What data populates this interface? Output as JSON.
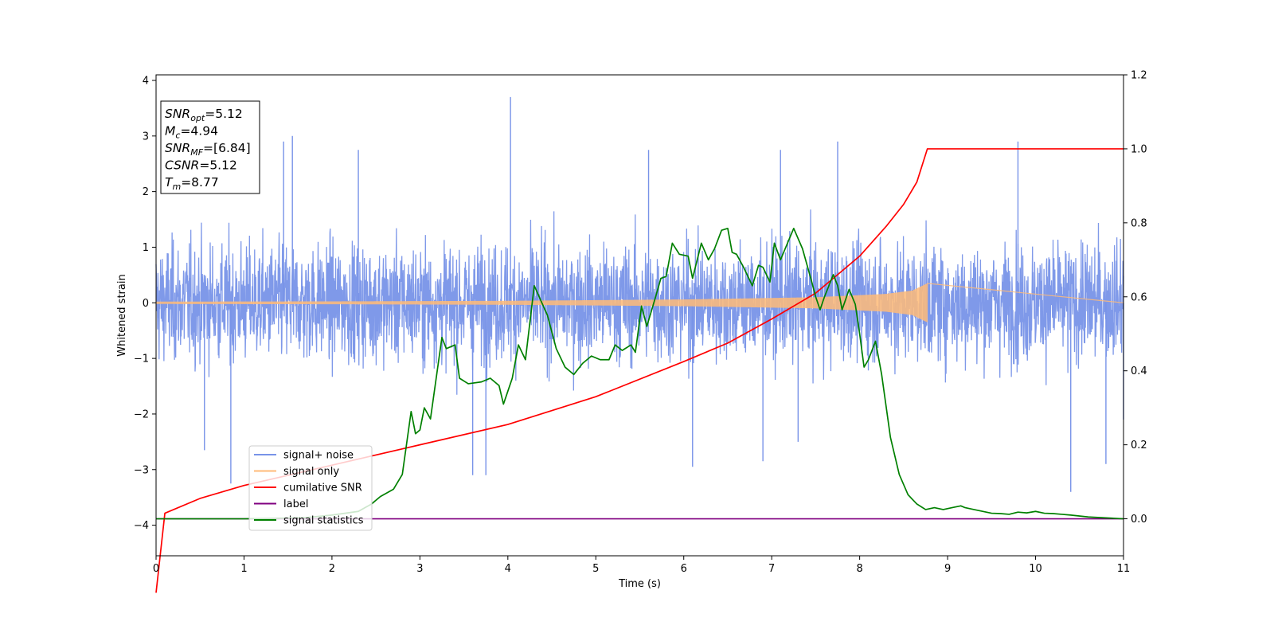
{
  "chart_data": {
    "type": "line",
    "title": "",
    "xlabel": "Time (s)",
    "ylabel_left": "Whitened strain",
    "ylabel_right": "",
    "xlim": [
      0,
      11
    ],
    "ylim_left": [
      -4.55,
      4.1
    ],
    "ylim_right": [
      -0.1,
      1.2
    ],
    "xticks": [
      0,
      1,
      2,
      3,
      4,
      5,
      6,
      7,
      8,
      9,
      10,
      11
    ],
    "yticks_left": [
      -4,
      -3,
      -2,
      -1,
      0,
      1,
      2,
      3,
      4
    ],
    "yticks_right": [
      "0.0",
      "0.2",
      "0.4",
      "0.6",
      "0.8",
      "1.0",
      "1.2"
    ],
    "grid": false,
    "legend_position": "lower-left",
    "info_box": [
      {
        "symbol": "SNR",
        "sub": "opt",
        "value": "=5.12"
      },
      {
        "symbol": "M",
        "sub": "c",
        "value": "=4.94"
      },
      {
        "symbol": "SNR",
        "sub": "MF",
        "value": "=[6.84]"
      },
      {
        "symbol": "CSNR",
        "sub": "",
        "value": "=5.12"
      },
      {
        "symbol": "T",
        "sub": "m",
        "value": "=8.77"
      }
    ],
    "series": [
      {
        "name": "signal+ noise",
        "color": "#7893e8",
        "axis": "left",
        "noise_amplitude": 1.25,
        "peak_marks": [
          [
            0.85,
            -3.25
          ],
          [
            1.45,
            2.9
          ],
          [
            1.55,
            3.0
          ],
          [
            2.3,
            2.75
          ],
          [
            3.6,
            -3.1
          ],
          [
            4.03,
            3.7
          ],
          [
            3.75,
            -3.1
          ],
          [
            5.6,
            2.75
          ],
          [
            6.1,
            -2.95
          ],
          [
            7.1,
            2.75
          ],
          [
            7.3,
            -2.5
          ],
          [
            7.75,
            2.9
          ],
          [
            9.8,
            2.9
          ],
          [
            10.4,
            -3.4
          ],
          [
            10.8,
            -2.9
          ],
          [
            11.0,
            -2.1
          ],
          [
            0.55,
            -2.65
          ],
          [
            6.9,
            -2.85
          ]
        ]
      },
      {
        "name": "signal only",
        "color": "#ffbb78",
        "axis": "left",
        "envelope": [
          [
            0,
            0.02
          ],
          [
            2,
            0.025
          ],
          [
            4,
            0.035
          ],
          [
            6,
            0.06
          ],
          [
            7.5,
            0.1
          ],
          [
            8.3,
            0.16
          ],
          [
            8.6,
            0.22
          ],
          [
            8.77,
            0.35
          ]
        ],
        "end_time": 8.77
      },
      {
        "name": "cumilative SNR",
        "color": "#ff0000",
        "axis": "right",
        "points": [
          [
            0,
            -0.2
          ],
          [
            0.1,
            0.015
          ],
          [
            0.5,
            0.055
          ],
          [
            1,
            0.09
          ],
          [
            2,
            0.145
          ],
          [
            3,
            0.2
          ],
          [
            4,
            0.255
          ],
          [
            5,
            0.33
          ],
          [
            6,
            0.425
          ],
          [
            6.5,
            0.475
          ],
          [
            7,
            0.54
          ],
          [
            7.5,
            0.61
          ],
          [
            8,
            0.71
          ],
          [
            8.3,
            0.79
          ],
          [
            8.5,
            0.85
          ],
          [
            8.65,
            0.91
          ],
          [
            8.77,
            1.0
          ],
          [
            11,
            1.0
          ]
        ]
      },
      {
        "name": "label",
        "color": "#800080",
        "axis": "right",
        "points": [
          [
            0,
            0.0
          ],
          [
            11,
            0.0
          ]
        ]
      },
      {
        "name": "signal statistics",
        "color": "#008000",
        "axis": "right",
        "points": [
          [
            0,
            0.0
          ],
          [
            1,
            0.0
          ],
          [
            1.7,
            0.003
          ],
          [
            2,
            0.01
          ],
          [
            2.3,
            0.02
          ],
          [
            2.45,
            0.04
          ],
          [
            2.55,
            0.06
          ],
          [
            2.7,
            0.08
          ],
          [
            2.8,
            0.12
          ],
          [
            2.9,
            0.29
          ],
          [
            2.95,
            0.23
          ],
          [
            3.0,
            0.24
          ],
          [
            3.05,
            0.3
          ],
          [
            3.12,
            0.27
          ],
          [
            3.25,
            0.49
          ],
          [
            3.3,
            0.46
          ],
          [
            3.4,
            0.47
          ],
          [
            3.45,
            0.38
          ],
          [
            3.55,
            0.365
          ],
          [
            3.7,
            0.37
          ],
          [
            3.8,
            0.38
          ],
          [
            3.9,
            0.36
          ],
          [
            3.95,
            0.31
          ],
          [
            4.05,
            0.38
          ],
          [
            4.12,
            0.47
          ],
          [
            4.2,
            0.43
          ],
          [
            4.3,
            0.63
          ],
          [
            4.45,
            0.55
          ],
          [
            4.55,
            0.46
          ],
          [
            4.65,
            0.41
          ],
          [
            4.75,
            0.39
          ],
          [
            4.85,
            0.42
          ],
          [
            4.95,
            0.44
          ],
          [
            5.05,
            0.43
          ],
          [
            5.15,
            0.43
          ],
          [
            5.22,
            0.47
          ],
          [
            5.3,
            0.455
          ],
          [
            5.4,
            0.47
          ],
          [
            5.45,
            0.45
          ],
          [
            5.52,
            0.575
          ],
          [
            5.58,
            0.52
          ],
          [
            5.68,
            0.6
          ],
          [
            5.74,
            0.65
          ],
          [
            5.8,
            0.655
          ],
          [
            5.87,
            0.745
          ],
          [
            5.95,
            0.715
          ],
          [
            6.05,
            0.71
          ],
          [
            6.1,
            0.65
          ],
          [
            6.2,
            0.745
          ],
          [
            6.28,
            0.7
          ],
          [
            6.35,
            0.73
          ],
          [
            6.43,
            0.78
          ],
          [
            6.5,
            0.785
          ],
          [
            6.55,
            0.72
          ],
          [
            6.6,
            0.715
          ],
          [
            6.68,
            0.68
          ],
          [
            6.78,
            0.63
          ],
          [
            6.85,
            0.685
          ],
          [
            6.9,
            0.68
          ],
          [
            6.98,
            0.64
          ],
          [
            7.03,
            0.745
          ],
          [
            7.1,
            0.7
          ],
          [
            7.25,
            0.785
          ],
          [
            7.35,
            0.73
          ],
          [
            7.45,
            0.645
          ],
          [
            7.5,
            0.6
          ],
          [
            7.55,
            0.565
          ],
          [
            7.6,
            0.6
          ],
          [
            7.7,
            0.66
          ],
          [
            7.75,
            0.63
          ],
          [
            7.8,
            0.565
          ],
          [
            7.88,
            0.62
          ],
          [
            7.95,
            0.58
          ],
          [
            8.0,
            0.5
          ],
          [
            8.05,
            0.41
          ],
          [
            8.1,
            0.43
          ],
          [
            8.18,
            0.48
          ],
          [
            8.25,
            0.39
          ],
          [
            8.35,
            0.22
          ],
          [
            8.45,
            0.12
          ],
          [
            8.55,
            0.065
          ],
          [
            8.65,
            0.04
          ],
          [
            8.75,
            0.025
          ],
          [
            8.85,
            0.03
          ],
          [
            8.95,
            0.025
          ],
          [
            9.05,
            0.03
          ],
          [
            9.15,
            0.035
          ],
          [
            9.2,
            0.03
          ],
          [
            9.3,
            0.025
          ],
          [
            9.5,
            0.015
          ],
          [
            9.6,
            0.014
          ],
          [
            9.7,
            0.012
          ],
          [
            9.8,
            0.018
          ],
          [
            9.9,
            0.016
          ],
          [
            10.0,
            0.02
          ],
          [
            10.1,
            0.015
          ],
          [
            10.2,
            0.014
          ],
          [
            10.3,
            0.012
          ],
          [
            10.4,
            0.01
          ],
          [
            10.6,
            0.005
          ],
          [
            11.0,
            0.0
          ]
        ]
      }
    ]
  }
}
